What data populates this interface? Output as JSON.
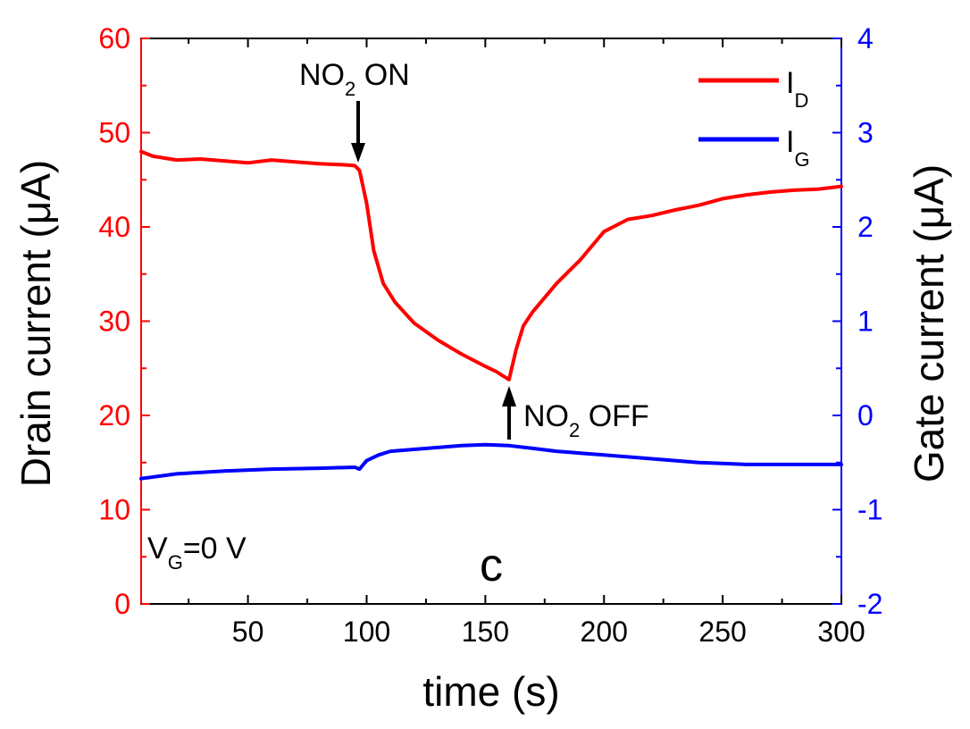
{
  "chart_data": {
    "type": "line",
    "xlabel": "time (s)",
    "ylabel_left": "Drain current (μA)",
    "ylabel_right": "Gate current (μA)",
    "xlim": [
      5,
      300
    ],
    "ylim_left": [
      0,
      60
    ],
    "ylim_right": [
      -2,
      4
    ],
    "x_ticks": [
      50,
      100,
      150,
      200,
      250,
      300
    ],
    "y_left_ticks": [
      0,
      10,
      20,
      30,
      40,
      50,
      60
    ],
    "y_right_ticks": [
      -2,
      -1,
      0,
      1,
      2,
      3,
      4
    ],
    "y_left_tick_labels": [
      "0",
      "10",
      "20",
      "30",
      "40",
      "50",
      "60"
    ],
    "y_right_tick_labels": [
      "-2",
      "-1",
      "0",
      "1",
      "2",
      "3",
      "4"
    ],
    "x_tick_labels": [
      "50",
      "100",
      "150",
      "200",
      "250",
      "300"
    ],
    "grid": false,
    "legend_position": "top-right",
    "colors": {
      "drain": "#ff0000",
      "gate": "#0000ff",
      "left_axis": "#ff0000",
      "right_axis": "#0000ff"
    },
    "series": [
      {
        "name": "I",
        "subscript": "D",
        "axis": "left",
        "x": [
          5,
          10,
          20,
          30,
          40,
          50,
          60,
          70,
          80,
          90,
          95,
          97,
          100,
          103,
          107,
          112,
          120,
          130,
          140,
          150,
          155,
          158,
          160,
          163,
          166,
          170,
          180,
          190,
          200,
          210,
          220,
          230,
          240,
          250,
          260,
          270,
          280,
          290,
          300
        ],
        "y": [
          48.0,
          47.5,
          47.1,
          47.2,
          47.0,
          46.8,
          47.1,
          46.9,
          46.7,
          46.6,
          46.5,
          46.0,
          42.5,
          37.5,
          34.0,
          32.0,
          29.8,
          28.0,
          26.5,
          25.2,
          24.6,
          24.1,
          23.8,
          27.0,
          29.5,
          31.0,
          34.0,
          36.5,
          39.5,
          40.8,
          41.2,
          41.8,
          42.3,
          43.0,
          43.4,
          43.7,
          43.9,
          44.0,
          44.3
        ]
      },
      {
        "name": "I",
        "subscript": "G",
        "axis": "right",
        "x": [
          5,
          20,
          40,
          60,
          80,
          95,
          97,
          100,
          105,
          110,
          120,
          130,
          140,
          150,
          160,
          170,
          180,
          190,
          200,
          210,
          220,
          230,
          240,
          250,
          260,
          270,
          280,
          290,
          300
        ],
        "y": [
          -0.67,
          -0.62,
          -0.59,
          -0.57,
          -0.56,
          -0.55,
          -0.57,
          -0.48,
          -0.42,
          -0.38,
          -0.36,
          -0.34,
          -0.32,
          -0.31,
          -0.32,
          -0.35,
          -0.38,
          -0.4,
          -0.42,
          -0.44,
          -0.46,
          -0.48,
          -0.5,
          -0.51,
          -0.52,
          -0.52,
          -0.52,
          -0.52,
          -0.52
        ]
      }
    ],
    "annotations": {
      "no2_on": {
        "text_pre": "NO",
        "text_sub": "2",
        "text_post": " ON",
        "x": 96,
        "y": 46.5
      },
      "no2_off": {
        "text_pre": "NO",
        "text_sub": "2",
        "text_post": " OFF",
        "x": 160,
        "y": 23.8
      },
      "vg": {
        "text_pre": "V",
        "text_sub": "G",
        "text_post": "=0 V"
      },
      "panel": "c"
    }
  }
}
